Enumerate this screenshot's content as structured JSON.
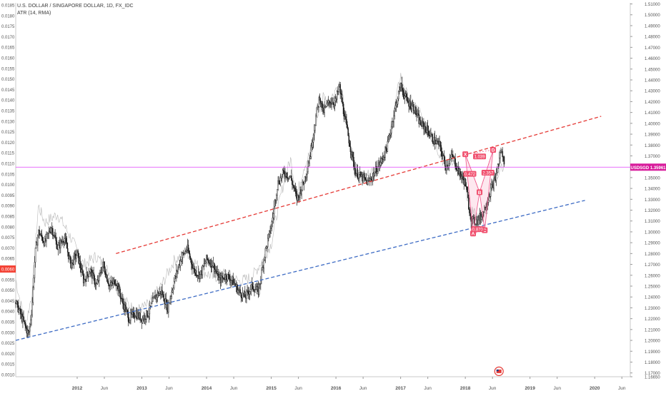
{
  "header": {
    "symbol_title": "U.S. DOLLAR / SINGAPORE DOLLAR, 1D, FX_IDC",
    "indicator": "ATR (14, RMA)"
  },
  "chart_data": {
    "type": "candlestick",
    "price_axis": {
      "min": 1.1665,
      "max": 1.511,
      "step": 0.01,
      "ticks": [
        "1.51000",
        "1.50000",
        "1.49000",
        "1.48000",
        "1.47000",
        "1.46000",
        "1.45000",
        "1.44000",
        "1.43000",
        "1.42000",
        "1.41000",
        "1.40000",
        "1.39000",
        "1.38000",
        "1.37000",
        "1.36000",
        "1.35000",
        "1.34000",
        "1.33000",
        "1.32000",
        "1.31000",
        "1.30000",
        "1.29000",
        "1.28000",
        "1.27000",
        "1.26000",
        "1.25000",
        "1.24000",
        "1.23000",
        "1.22000",
        "1.21000",
        "1.20000",
        "1.19000",
        "1.18000",
        "1.17000",
        "1.16650"
      ]
    },
    "atr_axis": {
      "min": 0.0009,
      "max": 0.0186,
      "ticks": [
        "0.0185",
        "0.0180",
        "0.0175",
        "0.0170",
        "0.0165",
        "0.0160",
        "0.0155",
        "0.0150",
        "0.0145",
        "0.0140",
        "0.0135",
        "0.0130",
        "0.0125",
        "0.0120",
        "0.0115",
        "0.0110",
        "0.0105",
        "0.0100",
        "0.0095",
        "0.0090",
        "0.0085",
        "0.0080",
        "0.0075",
        "0.0070",
        "0.0065",
        "0.0060",
        "0.0055",
        "0.0050",
        "0.0045",
        "0.0040",
        "0.0035",
        "0.0030",
        "0.0025",
        "0.0020",
        "0.0015",
        "0.0010"
      ]
    },
    "time_axis": {
      "start": 2011.05,
      "end": 2020.55,
      "labels": [
        {
          "label": "2012",
          "t": 2012.0
        },
        {
          "label": "Jun",
          "t": 2012.42
        },
        {
          "label": "2013",
          "t": 2013.0
        },
        {
          "label": "Jun",
          "t": 2013.42
        },
        {
          "label": "2014",
          "t": 2014.0
        },
        {
          "label": "Jun",
          "t": 2014.42
        },
        {
          "label": "2015",
          "t": 2015.0
        },
        {
          "label": "Jun",
          "t": 2015.42
        },
        {
          "label": "2016",
          "t": 2016.0
        },
        {
          "label": "Jun",
          "t": 2016.42
        },
        {
          "label": "2017",
          "t": 2017.0
        },
        {
          "label": "Jun",
          "t": 2017.42
        },
        {
          "label": "2018",
          "t": 2018.0
        },
        {
          "label": "Jun",
          "t": 2018.42
        },
        {
          "label": "2019",
          "t": 2019.0
        },
        {
          "label": "Jun",
          "t": 2019.42
        },
        {
          "label": "2020",
          "t": 2020.0
        },
        {
          "label": "Jun",
          "t": 2020.42
        }
      ]
    },
    "price_path": [
      [
        2011.05,
        1.235
      ],
      [
        2011.15,
        1.22
      ],
      [
        2011.25,
        1.205
      ],
      [
        2011.3,
        1.23
      ],
      [
        2011.35,
        1.28
      ],
      [
        2011.4,
        1.3
      ],
      [
        2011.5,
        1.29
      ],
      [
        2011.6,
        1.305
      ],
      [
        2011.7,
        1.285
      ],
      [
        2011.8,
        1.295
      ],
      [
        2011.9,
        1.27
      ],
      [
        2012.0,
        1.28
      ],
      [
        2012.1,
        1.255
      ],
      [
        2012.2,
        1.265
      ],
      [
        2012.3,
        1.25
      ],
      [
        2012.4,
        1.27
      ],
      [
        2012.5,
        1.25
      ],
      [
        2012.6,
        1.255
      ],
      [
        2012.7,
        1.235
      ],
      [
        2012.8,
        1.22
      ],
      [
        2012.9,
        1.225
      ],
      [
        2013.0,
        1.22
      ],
      [
        2013.1,
        1.225
      ],
      [
        2013.2,
        1.24
      ],
      [
        2013.3,
        1.245
      ],
      [
        2013.4,
        1.23
      ],
      [
        2013.5,
        1.255
      ],
      [
        2013.6,
        1.275
      ],
      [
        2013.7,
        1.285
      ],
      [
        2013.8,
        1.265
      ],
      [
        2013.9,
        1.26
      ],
      [
        2014.0,
        1.275
      ],
      [
        2014.1,
        1.27
      ],
      [
        2014.2,
        1.255
      ],
      [
        2014.3,
        1.26
      ],
      [
        2014.4,
        1.255
      ],
      [
        2014.5,
        1.245
      ],
      [
        2014.6,
        1.24
      ],
      [
        2014.7,
        1.25
      ],
      [
        2014.8,
        1.245
      ],
      [
        2014.9,
        1.28
      ],
      [
        2015.0,
        1.305
      ],
      [
        2015.05,
        1.325
      ],
      [
        2015.1,
        1.345
      ],
      [
        2015.2,
        1.355
      ],
      [
        2015.3,
        1.35
      ],
      [
        2015.4,
        1.33
      ],
      [
        2015.5,
        1.345
      ],
      [
        2015.6,
        1.37
      ],
      [
        2015.7,
        1.41
      ],
      [
        2015.75,
        1.425
      ],
      [
        2015.8,
        1.41
      ],
      [
        2015.9,
        1.42
      ],
      [
        2016.0,
        1.42
      ],
      [
        2016.05,
        1.435
      ],
      [
        2016.12,
        1.41
      ],
      [
        2016.2,
        1.385
      ],
      [
        2016.3,
        1.355
      ],
      [
        2016.4,
        1.35
      ],
      [
        2016.5,
        1.345
      ],
      [
        2016.6,
        1.355
      ],
      [
        2016.7,
        1.365
      ],
      [
        2016.8,
        1.38
      ],
      [
        2016.9,
        1.41
      ],
      [
        2017.0,
        1.435
      ],
      [
        2017.1,
        1.42
      ],
      [
        2017.2,
        1.415
      ],
      [
        2017.3,
        1.4
      ],
      [
        2017.4,
        1.395
      ],
      [
        2017.5,
        1.385
      ],
      [
        2017.6,
        1.38
      ],
      [
        2017.7,
        1.36
      ],
      [
        2017.8,
        1.37
      ],
      [
        2017.9,
        1.355
      ],
      [
        2018.0,
        1.345
      ],
      [
        2018.05,
        1.325
      ],
      [
        2018.1,
        1.31
      ],
      [
        2018.18,
        1.31
      ],
      [
        2018.25,
        1.315
      ],
      [
        2018.32,
        1.325
      ],
      [
        2018.4,
        1.34
      ],
      [
        2018.47,
        1.35
      ],
      [
        2018.55,
        1.375
      ],
      [
        2018.6,
        1.365
      ]
    ],
    "atr_path": [
      [
        2011.05,
        0.0055
      ],
      [
        2011.2,
        0.0033
      ],
      [
        2011.3,
        0.0048
      ],
      [
        2011.4,
        0.009
      ],
      [
        2011.5,
        0.0082
      ],
      [
        2011.7,
        0.0086
      ],
      [
        2011.9,
        0.0075
      ],
      [
        2012.1,
        0.0062
      ],
      [
        2012.3,
        0.0066
      ],
      [
        2012.5,
        0.0058
      ],
      [
        2012.7,
        0.0046
      ],
      [
        2012.9,
        0.004
      ],
      [
        2013.1,
        0.0043
      ],
      [
        2013.3,
        0.0052
      ],
      [
        2013.5,
        0.0064
      ],
      [
        2013.7,
        0.0068
      ],
      [
        2013.9,
        0.006
      ],
      [
        2014.1,
        0.0056
      ],
      [
        2014.3,
        0.0058
      ],
      [
        2014.5,
        0.0054
      ],
      [
        2014.7,
        0.0056
      ],
      [
        2014.9,
        0.0066
      ],
      [
        2015.0,
        0.0072
      ],
      [
        2015.1,
        0.0088
      ],
      [
        2015.2,
        0.0102
      ],
      [
        2015.3,
        0.0112
      ],
      [
        2015.4,
        0.0095
      ],
      [
        2015.5,
        0.0108
      ],
      [
        2015.6,
        0.0115
      ],
      [
        2015.7,
        0.013
      ],
      [
        2015.8,
        0.0142
      ],
      [
        2015.9,
        0.0138
      ],
      [
        2016.0,
        0.0146
      ],
      [
        2016.1,
        0.0142
      ],
      [
        2016.2,
        0.0122
      ],
      [
        2016.3,
        0.0108
      ],
      [
        2016.4,
        0.0102
      ],
      [
        2016.5,
        0.0105
      ],
      [
        2016.6,
        0.0106
      ],
      [
        2016.7,
        0.0112
      ],
      [
        2016.8,
        0.0118
      ],
      [
        2016.9,
        0.0135
      ],
      [
        2017.0,
        0.0152
      ],
      [
        2017.1,
        0.0142
      ],
      [
        2017.2,
        0.0138
      ],
      [
        2017.3,
        0.0134
      ],
      [
        2017.4,
        0.0125
      ],
      [
        2017.5,
        0.0122
      ],
      [
        2017.6,
        0.0115
      ],
      [
        2017.7,
        0.0108
      ],
      [
        2017.8,
        0.0112
      ],
      [
        2017.9,
        0.0105
      ],
      [
        2018.0,
        0.0098
      ],
      [
        2018.1,
        0.0088
      ],
      [
        2018.2,
        0.0084
      ],
      [
        2018.3,
        0.0087
      ],
      [
        2018.4,
        0.0098
      ],
      [
        2018.5,
        0.0105
      ],
      [
        2018.55,
        0.011
      ],
      [
        2018.6,
        0.0108
      ]
    ],
    "upper_channel": {
      "color": "#e53935",
      "from": [
        2012.6,
        1.28
      ],
      "to": [
        2020.1,
        1.4065
      ]
    },
    "lower_channel": {
      "color": "#3d6bc4",
      "from": [
        2011.05,
        1.2
      ],
      "to": [
        2019.85,
        1.329
      ]
    },
    "current_price_line": {
      "value": 1.35961,
      "color": "#e040fb"
    },
    "price_tag": {
      "text": "USDSGD 1.35961",
      "color": "#d81b9b"
    },
    "atr_tag": {
      "text": "0.0060",
      "atr_value": 0.006,
      "color": "#f44336"
    },
    "harmonic_pattern": {
      "color": "#f06292",
      "points": [
        {
          "label": "X",
          "t": 2018.0,
          "p": 1.3715
        },
        {
          "label": "A",
          "t": 2018.12,
          "p": 1.2985
        },
        {
          "label": "B",
          "t": 2018.22,
          "p": 1.3365
        },
        {
          "label": "C",
          "t": 2018.3,
          "p": 1.3015
        },
        {
          "label": "D",
          "t": 2018.43,
          "p": 1.3755
        }
      ],
      "ratios": [
        {
          "text": "1.039",
          "t": 2018.22,
          "p": 1.3695
        },
        {
          "text": "0.472",
          "t": 2018.07,
          "p": 1.3535
        },
        {
          "text": "2.357",
          "t": 2018.35,
          "p": 1.3545
        },
        {
          "text": "0.870",
          "t": 2018.19,
          "p": 1.3025
        }
      ]
    },
    "event_icon": {
      "t": 2018.52,
      "p": 1.1715,
      "color": "#e53935"
    }
  }
}
